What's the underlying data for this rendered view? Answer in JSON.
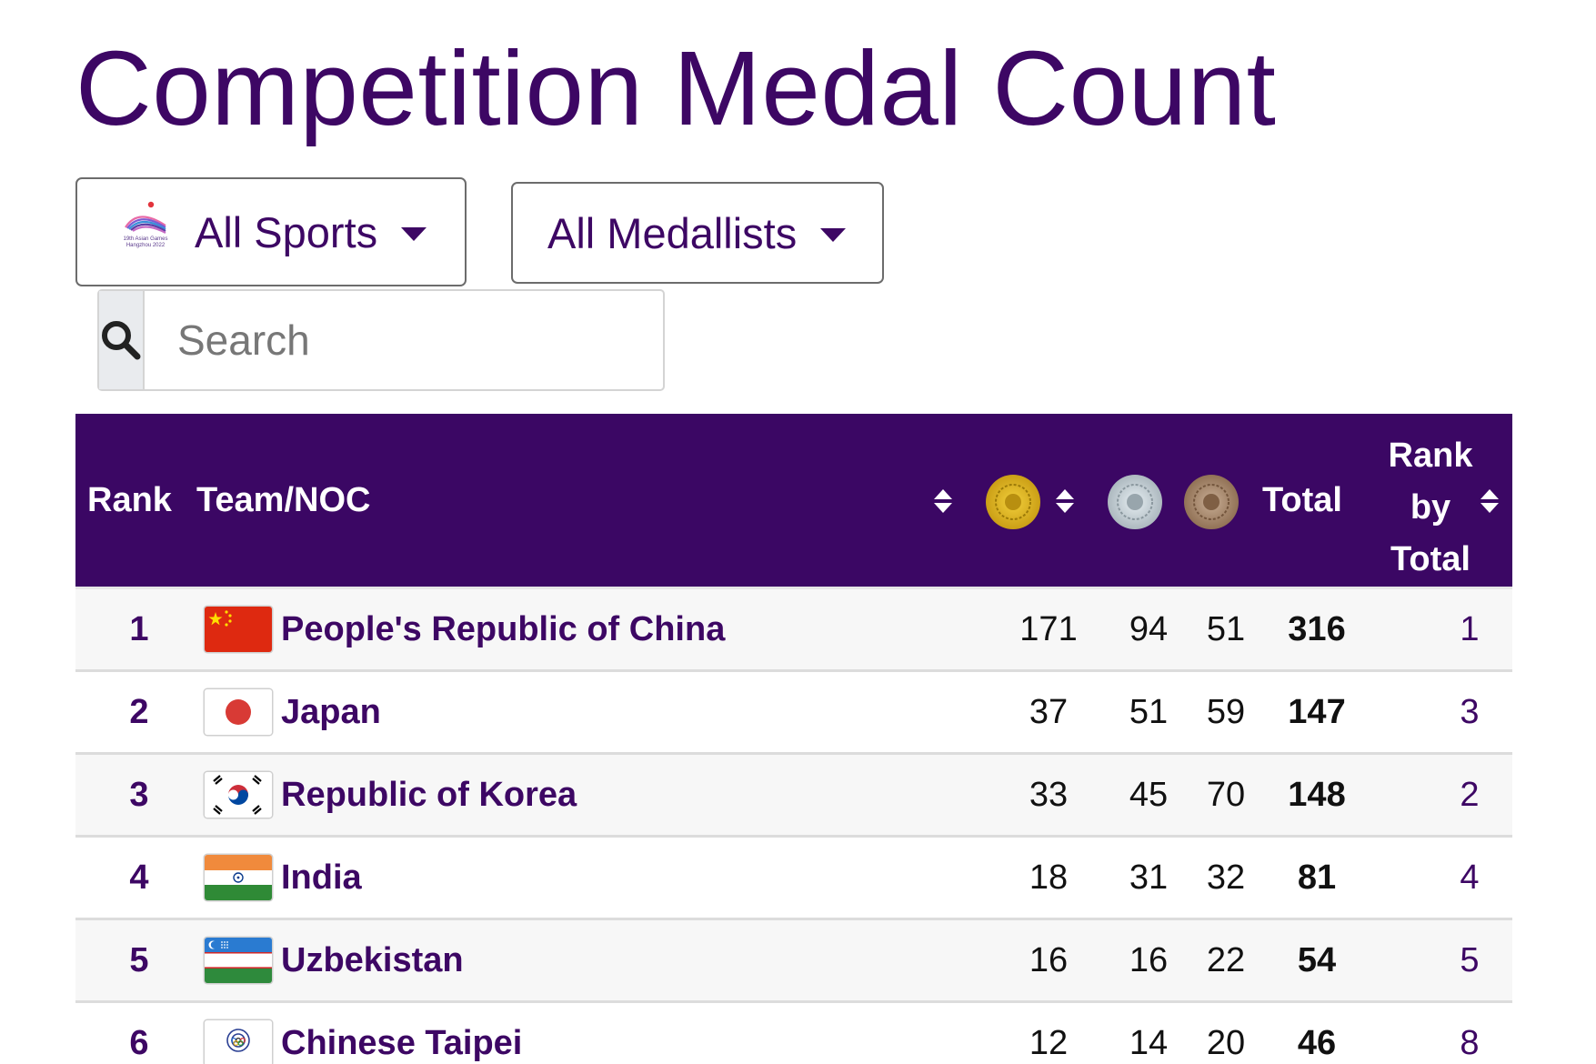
{
  "page": {
    "title": "Competition Medal Count"
  },
  "filters": {
    "sports": {
      "label": "All Sports",
      "logo_caption_1": "19th Asian Games",
      "logo_caption_2": "Hangzhou 2022"
    },
    "medallists": {
      "label": "All Medallists"
    }
  },
  "search": {
    "placeholder": "Search"
  },
  "table": {
    "headers": {
      "rank": "Rank",
      "team": "Team/NOC",
      "total": "Total",
      "rank_by_total_1": "Rank",
      "rank_by_total_2": "by",
      "rank_by_total_3": "Total"
    },
    "medal_icons": [
      "gold-medal-icon",
      "silver-medal-icon",
      "bronze-medal-icon"
    ],
    "rows": [
      {
        "rank": "1",
        "team": "People's Republic of China",
        "flag": "china-flag-icon",
        "gold": "171",
        "silver": "94",
        "bronze": "51",
        "total": "316",
        "rank_by_total": "1"
      },
      {
        "rank": "2",
        "team": "Japan",
        "flag": "japan-flag-icon",
        "gold": "37",
        "silver": "51",
        "bronze": "59",
        "total": "147",
        "rank_by_total": "3"
      },
      {
        "rank": "3",
        "team": "Republic of Korea",
        "flag": "korea-flag-icon",
        "gold": "33",
        "silver": "45",
        "bronze": "70",
        "total": "148",
        "rank_by_total": "2"
      },
      {
        "rank": "4",
        "team": "India",
        "flag": "india-flag-icon",
        "gold": "18",
        "silver": "31",
        "bronze": "32",
        "total": "81",
        "rank_by_total": "4"
      },
      {
        "rank": "5",
        "team": "Uzbekistan",
        "flag": "uzbekistan-flag-icon",
        "gold": "16",
        "silver": "16",
        "bronze": "22",
        "total": "54",
        "rank_by_total": "5"
      },
      {
        "rank": "6",
        "team": "Chinese Taipei",
        "flag": "chinese-taipei-flag-icon",
        "gold": "12",
        "silver": "14",
        "bronze": "20",
        "total": "46",
        "rank_by_total": "8"
      }
    ]
  },
  "colors": {
    "brand_purple": "#3d0764",
    "header_bg": "#3b0764",
    "gold": "#d4af37",
    "silver": "#b8c2c8",
    "bronze": "#a88a6e"
  }
}
